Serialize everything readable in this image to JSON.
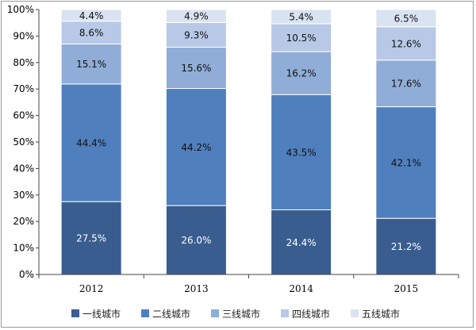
{
  "chart_data": {
    "type": "bar",
    "stacked": true,
    "categories": [
      "2012",
      "2013",
      "2014",
      "2015"
    ],
    "series": [
      {
        "name": "一线城市",
        "values": [
          27.5,
          26.0,
          24.4,
          21.2
        ],
        "labels": [
          "27.5%",
          "26.0%",
          "24.4%",
          "21.2%"
        ],
        "color": "#3a5d8f",
        "label_color": "#ffffff"
      },
      {
        "name": "二线城市",
        "values": [
          44.4,
          44.2,
          43.5,
          42.1
        ],
        "labels": [
          "44.4%",
          "44.2%",
          "43.5%",
          "42.1%"
        ],
        "color": "#4f7fbd",
        "label_color": "#111111"
      },
      {
        "name": "三线城市",
        "values": [
          15.1,
          15.6,
          16.2,
          17.6
        ],
        "labels": [
          "15.1%",
          "15.6%",
          "16.2%",
          "17.6%"
        ],
        "color": "#8fadd6",
        "label_color": "#111111"
      },
      {
        "name": "四线城市",
        "values": [
          8.6,
          9.3,
          10.5,
          12.6
        ],
        "labels": [
          "8.6%",
          "9.3%",
          "10.5%",
          "12.6%"
        ],
        "color": "#b7c9e6",
        "label_color": "#111111"
      },
      {
        "name": "五线城市",
        "values": [
          4.4,
          4.9,
          5.4,
          6.5
        ],
        "labels": [
          "4.4%",
          "4.9%",
          "5.4%",
          "6.5%"
        ],
        "color": "#d9e3f2",
        "label_color": "#111111"
      }
    ],
    "yticks": [
      "0%",
      "10%",
      "20%",
      "30%",
      "40%",
      "50%",
      "60%",
      "70%",
      "80%",
      "90%",
      "100%"
    ],
    "ylim": [
      0,
      100
    ],
    "grid": false,
    "legend_position": "bottom"
  }
}
